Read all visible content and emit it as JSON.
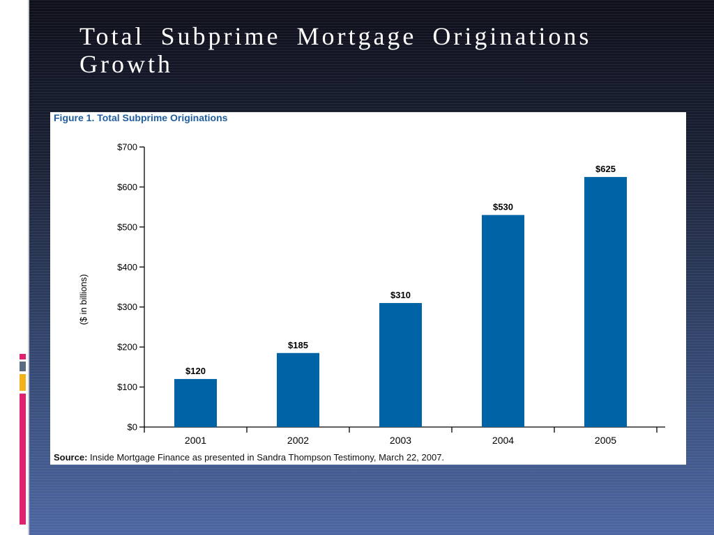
{
  "slide": {
    "title": "Total Subprime Mortgage Originations Growth"
  },
  "figure": {
    "caption": "Figure 1. Total Subprime Originations",
    "source_label": "Source:",
    "source_text": "Inside Mortgage Finance as presented in Sandra Thompson Testimony, March 22, 2007."
  },
  "colors": {
    "bar": "#0063a6",
    "caption": "#1f5d9c",
    "accent_pink": "#e0226e",
    "accent_slate": "#5b6b82",
    "accent_gold": "#f2b21c"
  },
  "chart_data": {
    "type": "bar",
    "title": "Figure 1. Total Subprime Originations",
    "categories": [
      "2001",
      "2002",
      "2003",
      "2004",
      "2005"
    ],
    "values": [
      120,
      185,
      310,
      530,
      625
    ],
    "data_labels": [
      "$120",
      "$185",
      "$310",
      "$530",
      "$625"
    ],
    "xlabel": "",
    "ylabel": "($ in billions)",
    "ylim": [
      0,
      700
    ],
    "yticks": [
      0,
      100,
      200,
      300,
      400,
      500,
      600,
      700
    ],
    "ytick_labels": [
      "$0",
      "$100",
      "$200",
      "$300",
      "$400",
      "$500",
      "$600",
      "$700"
    ],
    "grid": false,
    "legend": "none"
  }
}
